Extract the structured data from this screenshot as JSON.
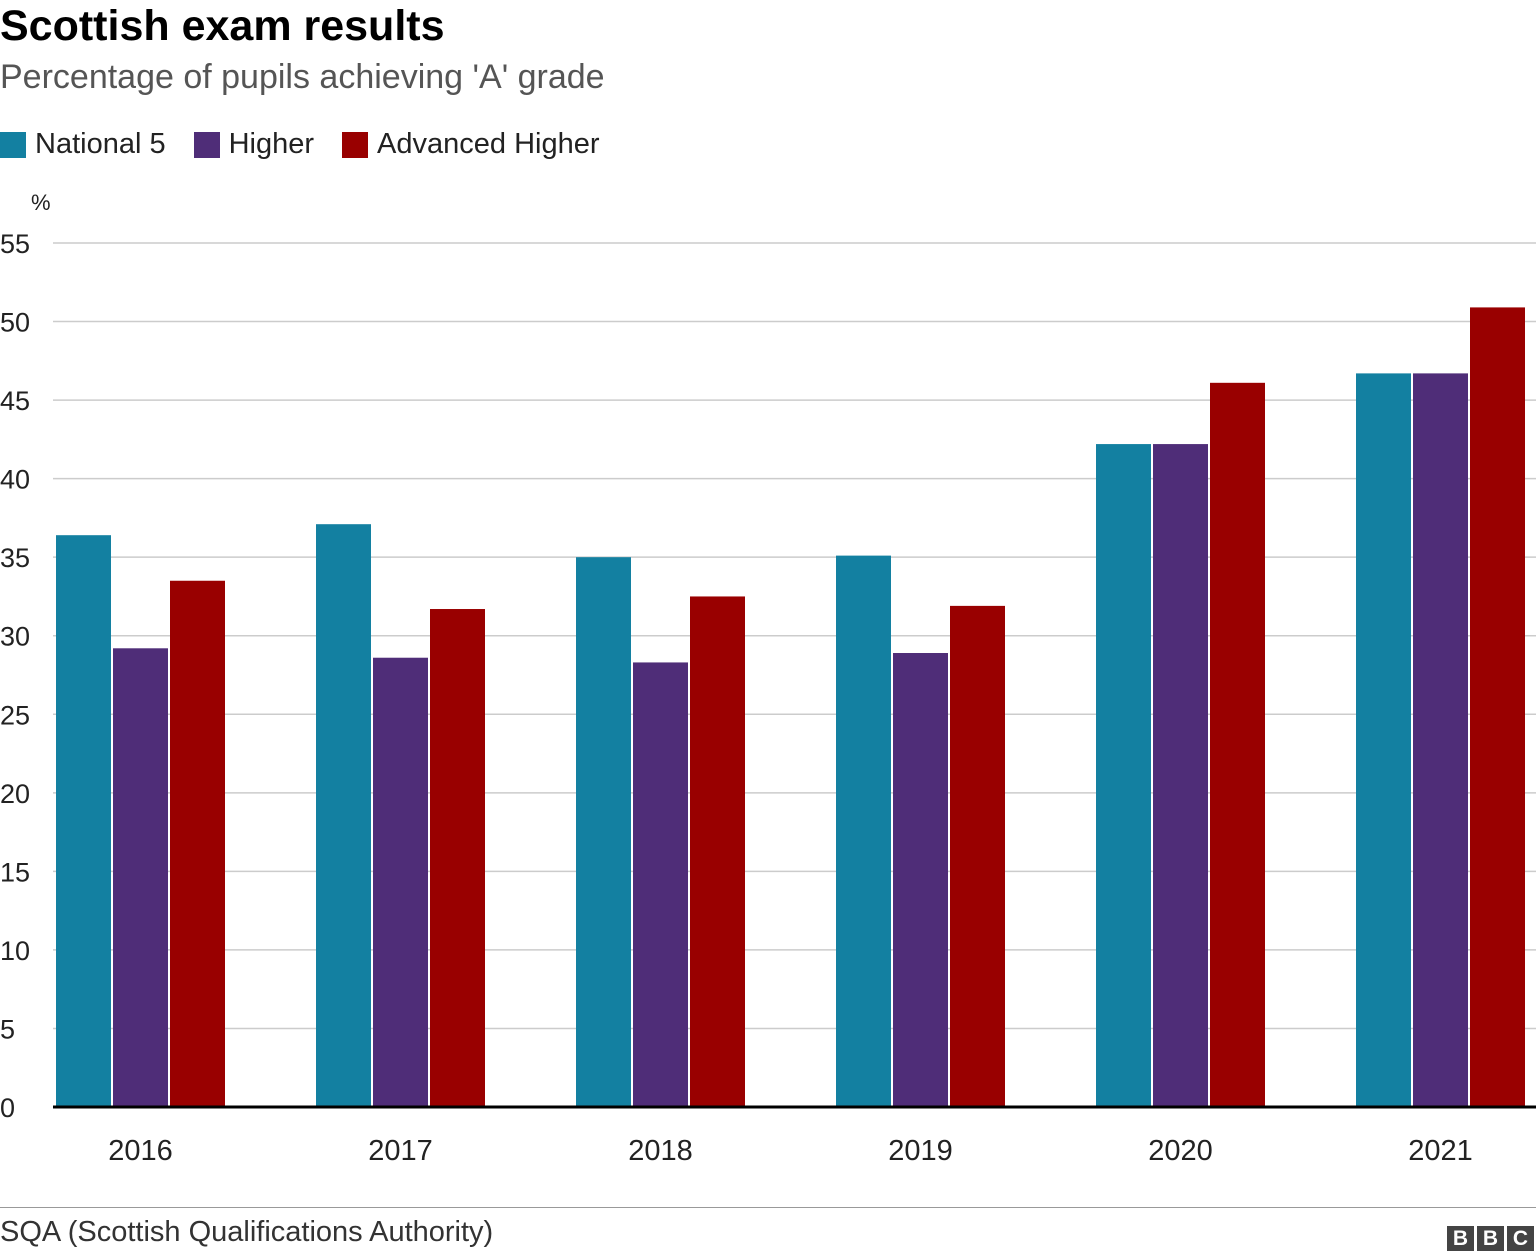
{
  "chart_data": {
    "type": "bar",
    "title": "Scottish exam results",
    "subtitle": "Percentage of pupils achieving 'A' grade",
    "ylabel": "%",
    "xlabel": "",
    "ylim": [
      0,
      55
    ],
    "yticks": [
      0,
      5,
      10,
      15,
      20,
      25,
      30,
      35,
      40,
      45,
      50,
      55
    ],
    "grid": true,
    "legend_position": "top-left",
    "categories": [
      "2016",
      "2017",
      "2018",
      "2019",
      "2020",
      "2021"
    ],
    "series": [
      {
        "name": "National 5",
        "color": "#1380A1",
        "values": [
          36.4,
          37.1,
          35.0,
          35.1,
          42.2,
          46.7
        ]
      },
      {
        "name": "Higher",
        "color": "#4F2D78",
        "values": [
          29.2,
          28.6,
          28.3,
          28.9,
          42.2,
          46.7
        ]
      },
      {
        "name": "Advanced Higher",
        "color": "#990000",
        "values": [
          33.5,
          31.7,
          32.5,
          31.9,
          46.1,
          50.9
        ]
      }
    ]
  },
  "source": "SQA (Scottish Qualifications Authority)",
  "logo": [
    "B",
    "B",
    "C"
  ]
}
